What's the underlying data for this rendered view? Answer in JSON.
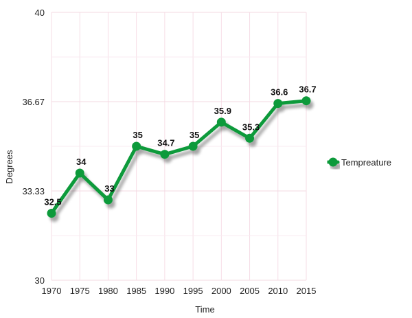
{
  "chart_data": {
    "type": "line",
    "title": "",
    "xlabel": "Time",
    "ylabel": "Degrees",
    "x": [
      1970,
      1975,
      1980,
      1985,
      1990,
      1995,
      2000,
      2005,
      2010,
      2015
    ],
    "x_tick_labels": [
      "1970",
      "1975",
      "1980",
      "1985",
      "1990",
      "1995",
      "2000",
      "2005",
      "2010",
      "2015"
    ],
    "ylim": [
      30,
      40
    ],
    "y_ticks": [
      30,
      33.33,
      36.67,
      40
    ],
    "y_tick_labels": [
      "30",
      "33.33",
      "36.67",
      "40"
    ],
    "grid": true,
    "legend_position": "right",
    "series": [
      {
        "name": "Tempreature",
        "color": "#0e9a3a",
        "values": [
          32.5,
          34,
          33,
          35,
          34.7,
          35,
          35.9,
          35.3,
          36.6,
          36.7
        ],
        "data_labels": [
          "32.5",
          "34",
          "33",
          "35",
          "34.7",
          "35",
          "35.9",
          "35.3",
          "36.6",
          "36.7"
        ]
      }
    ]
  }
}
